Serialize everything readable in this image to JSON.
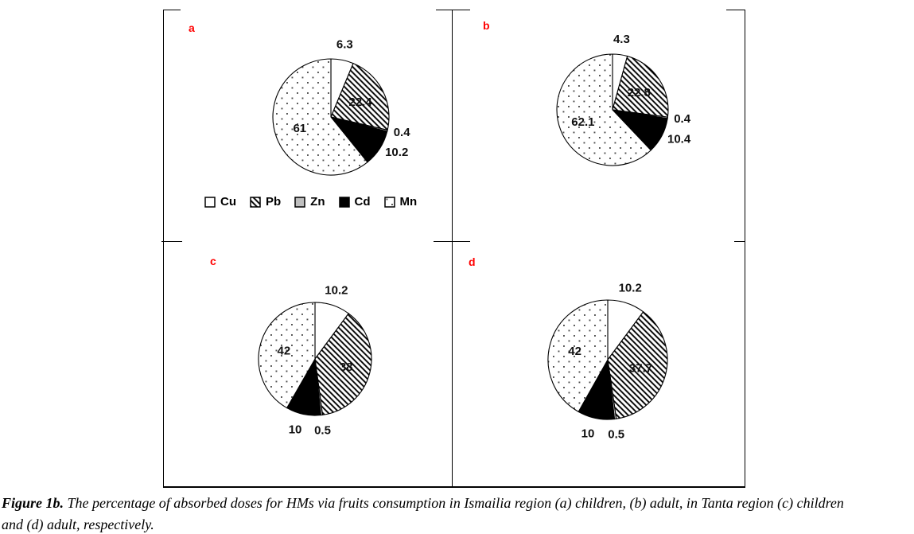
{
  "figure": {
    "legend": {
      "items": [
        {
          "label": "Cu",
          "pattern": "solid-white"
        },
        {
          "label": "Pb",
          "pattern": "diagonal-hatch"
        },
        {
          "label": "Zn",
          "pattern": "solid-gray"
        },
        {
          "label": "Cd",
          "pattern": "solid-black"
        },
        {
          "label": "Mn",
          "pattern": "dotted"
        }
      ]
    }
  },
  "chart_data": [
    {
      "type": "pie",
      "panel_label": "a",
      "region": "Ismailia",
      "population": "children",
      "categories": [
        "Cu",
        "Pb",
        "Zn",
        "Cd",
        "Mn"
      ],
      "values": [
        6.3,
        22.4,
        0.4,
        10.2,
        61
      ],
      "labels": [
        "6.3",
        "22.4",
        "0.4",
        "10.2",
        "61"
      ],
      "patterns": [
        "solid-white",
        "diagonal-hatch",
        "solid-gray",
        "solid-black",
        "dotted"
      ],
      "start_angle_deg": 0,
      "direction": "clockwise"
    },
    {
      "type": "pie",
      "panel_label": "b",
      "region": "Ismailia",
      "population": "adult",
      "categories": [
        "Cu",
        "Pb",
        "Zn",
        "Cd",
        "Mn"
      ],
      "values": [
        4.3,
        22.8,
        0.4,
        10.4,
        62.1
      ],
      "labels": [
        "4.3",
        "22.8",
        "0.4",
        "10.4",
        "62.1"
      ],
      "patterns": [
        "solid-white",
        "diagonal-hatch",
        "solid-gray",
        "solid-black",
        "dotted"
      ],
      "start_angle_deg": 0,
      "direction": "clockwise"
    },
    {
      "type": "pie",
      "panel_label": "c",
      "region": "Tanta",
      "population": "children",
      "categories": [
        "Cu",
        "Pb",
        "Zn",
        "Cd",
        "Mn"
      ],
      "values": [
        10.2,
        38,
        0.5,
        10,
        42
      ],
      "labels": [
        "10.2",
        "38",
        "0.5",
        "10",
        "42"
      ],
      "patterns": [
        "solid-white",
        "diagonal-hatch",
        "solid-gray",
        "solid-black",
        "dotted"
      ],
      "start_angle_deg": 0,
      "direction": "clockwise"
    },
    {
      "type": "pie",
      "panel_label": "d",
      "region": "Tanta",
      "population": "adult",
      "categories": [
        "Cu",
        "Pb",
        "Zn",
        "Cd",
        "Mn"
      ],
      "values": [
        10.2,
        37.7,
        0.5,
        10,
        42
      ],
      "labels": [
        "10.2",
        "37.7",
        "0.5",
        "10",
        "42"
      ],
      "patterns": [
        "solid-white",
        "diagonal-hatch",
        "solid-gray",
        "solid-black",
        "dotted"
      ],
      "start_angle_deg": 0,
      "direction": "clockwise"
    }
  ],
  "caption": {
    "figure_label": "Figure 1b.",
    "line1": "The percentage of absorbed doses for HMs via fruits consumption in Ismailia region (a) children, (b) adult, in Tanta region (c) children",
    "line2": "and (d) adult, respectively."
  },
  "colors": {
    "panel_letter_red": "#ff0000",
    "zn_gray": "#bfbfbf",
    "cd_black": "#000000",
    "line_black": "#000000",
    "dot_gray": "#4d4d4d"
  }
}
